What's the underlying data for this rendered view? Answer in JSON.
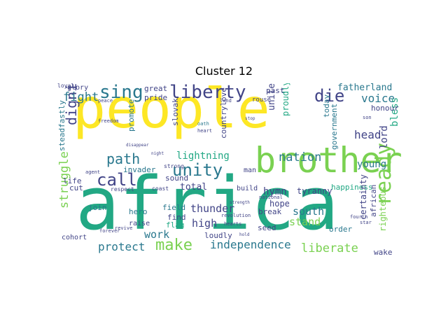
{
  "title": "Cluster 12",
  "palette": {
    "yellow": "#fde725",
    "lightgreen": "#7ad151",
    "green": "#22a884",
    "teal": "#2a788e",
    "blue": "#414487",
    "purple": "#440154"
  },
  "words": [
    "people",
    "africa",
    "brother",
    "liberty",
    "unity",
    "sing",
    "call",
    "path",
    "die",
    "dignity",
    "voice",
    "fight",
    "ready",
    "make",
    "independence",
    "liberate",
    "protect",
    "lightning",
    "nation",
    "hymn",
    "thunder",
    "struggle",
    "south",
    "stand",
    "head",
    "high",
    "young",
    "work",
    "united",
    "bless",
    "lord",
    "fatherland",
    "honour",
    "today",
    "proudly",
    "government",
    "happiness",
    "hope",
    "certainty",
    "african",
    "righteous",
    "tyranny",
    "break",
    "invader",
    "sound",
    "loudly",
    "seed",
    "order",
    "wake",
    "total",
    "field",
    "raise",
    "flag",
    "find",
    "join",
    "hero",
    "cut",
    "life",
    "cohort",
    "steadfastly",
    "promote",
    "slovak",
    "countrylove",
    "past",
    "pride",
    "great",
    "glory",
    "build",
    "man",
    "rouse",
    "respect",
    "coast",
    "strong",
    "forever",
    "revive",
    "oath",
    "freedom",
    "heart",
    "hold",
    "peace",
    "national",
    "son",
    "fourth",
    "star",
    "land",
    "revolution",
    "hearts",
    "stop",
    "strength",
    "agent",
    "disappear",
    "night",
    "loyal"
  ]
}
